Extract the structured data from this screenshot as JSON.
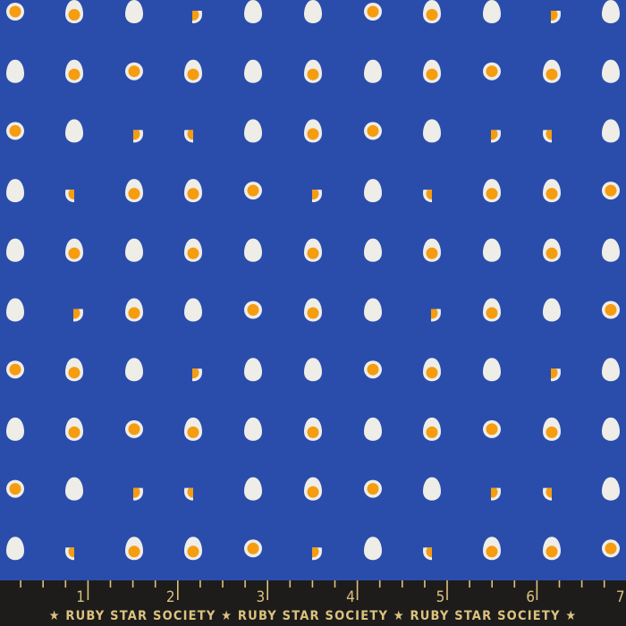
{
  "colors": {
    "background": "#2a4dac",
    "egg_white": "#eeede8",
    "yolk": "#f59c0f",
    "selvage": "#1d1c1b",
    "ruler_gold": "#dcc27e"
  },
  "pattern": {
    "legend": {
      "W": "whole egg",
      "Y": "halved egg with yolk",
      "R": "round egg slice",
      "HR": "right half egg",
      "HL": "left half egg"
    },
    "rows": [
      [
        "R",
        "Y",
        "W",
        "HR",
        "W",
        "W",
        "R",
        "Y",
        "W",
        "HR",
        "W"
      ],
      [
        "W",
        "Y",
        "R",
        "Y",
        "W",
        "Y",
        "W",
        "Y",
        "R",
        "Y",
        "W"
      ],
      [
        "R",
        "W",
        "HR",
        "HL",
        "W",
        "Y",
        "R",
        "W",
        "HR",
        "HL",
        "W"
      ],
      [
        "W",
        "HL",
        "Y",
        "Y",
        "R",
        "HR",
        "W",
        "HL",
        "Y",
        "Y",
        "R"
      ],
      [
        "W",
        "Y",
        "W",
        "Y",
        "W",
        "Y",
        "W",
        "Y",
        "W",
        "Y",
        "W"
      ],
      [
        "W",
        "HR",
        "Y",
        "W",
        "R",
        "Y",
        "W",
        "HR",
        "Y",
        "W",
        "R"
      ],
      [
        "R",
        "Y",
        "W",
        "HR",
        "W",
        "W",
        "R",
        "Y",
        "W",
        "HR",
        "W"
      ],
      [
        "W",
        "Y",
        "R",
        "Y",
        "W",
        "Y",
        "W",
        "Y",
        "R",
        "Y",
        "W"
      ],
      [
        "R",
        "W",
        "HR",
        "HL",
        "W",
        "Y",
        "R",
        "W",
        "HR",
        "HL",
        "W"
      ],
      [
        "W",
        "HL",
        "Y",
        "Y",
        "R",
        "HR",
        "W",
        "HL",
        "Y",
        "Y",
        "R"
      ]
    ]
  },
  "selvage": {
    "ruler_numbers": [
      "1",
      "2",
      "3",
      "4",
      "5",
      "6",
      "7"
    ],
    "brand_text": "★ RUBY STAR SOCIETY ★ RUBY STAR SOCIETY ★ RUBY STAR SOCIETY ★"
  }
}
